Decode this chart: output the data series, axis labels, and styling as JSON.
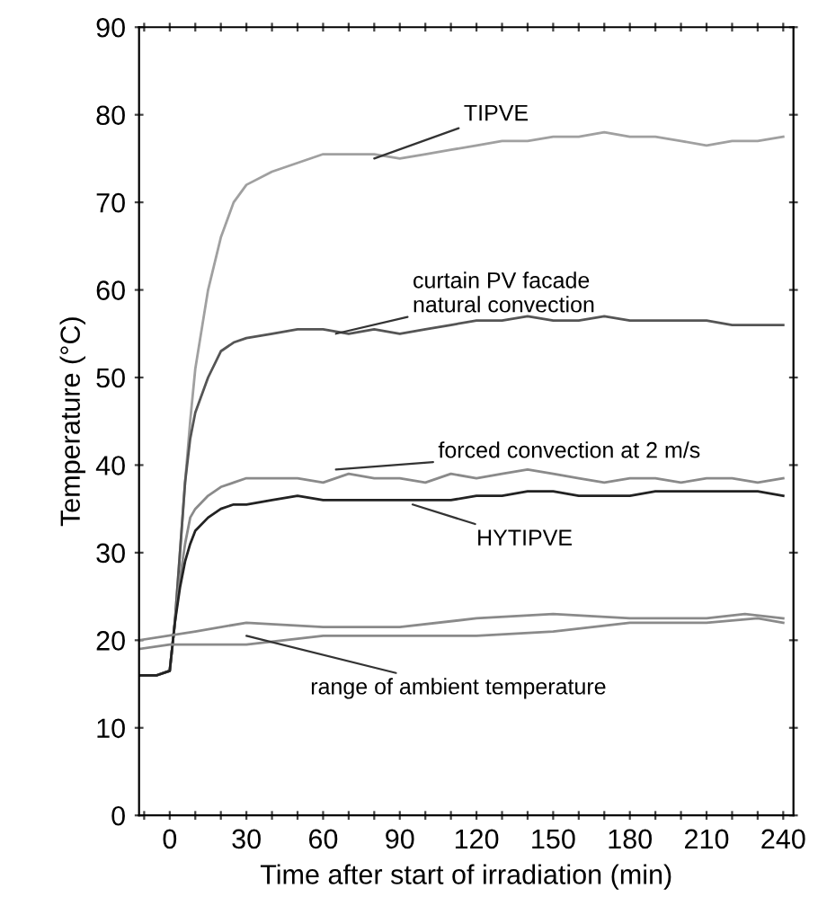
{
  "chart_data": {
    "type": "line",
    "xlabel": "Time after start of irradiation (min)",
    "ylabel": "Temperature (°C)",
    "xlim": [
      -12,
      244
    ],
    "ylim": [
      0,
      90
    ],
    "xticks": [
      {
        "value": -10,
        "label": null
      },
      0,
      {
        "value": 10,
        "label": null
      },
      {
        "value": 20,
        "label": null
      },
      30,
      {
        "value": 40,
        "label": null
      },
      {
        "value": 50,
        "label": null
      },
      60,
      {
        "value": 70,
        "label": null
      },
      {
        "value": 80,
        "label": null
      },
      90,
      {
        "value": 100,
        "label": null
      },
      {
        "value": 110,
        "label": null
      },
      120,
      {
        "value": 130,
        "label": null
      },
      {
        "value": 140,
        "label": null
      },
      150,
      {
        "value": 160,
        "label": null
      },
      {
        "value": 170,
        "label": null
      },
      180,
      {
        "value": 190,
        "label": null
      },
      {
        "value": 200,
        "label": null
      },
      210,
      {
        "value": 220,
        "label": null
      },
      {
        "value": 230,
        "label": null
      },
      240
    ],
    "yticks": [
      0,
      10,
      20,
      30,
      40,
      50,
      60,
      70,
      80,
      90
    ],
    "grid": false,
    "legend": false,
    "marker": "none",
    "line_style": "solid",
    "annotations": [
      {
        "text": "TIPVE",
        "x": 80,
        "y": 75
      },
      {
        "text": "curtain PV facade\nnatural convection",
        "x": 65,
        "y": 55
      },
      {
        "text": "forced convection at 2 m/s",
        "x": 65,
        "y": 39.5
      },
      {
        "text": "HYTIPVE",
        "x": 95,
        "y": 35.5
      },
      {
        "text": "range of ambient temperature",
        "x": 30,
        "y": 20.5
      }
    ],
    "series": [
      {
        "color": "#a0a0a0",
        "x": [
          -12,
          -5,
          0,
          2,
          4,
          6,
          8,
          10,
          15,
          20,
          25,
          30,
          40,
          50,
          60,
          70,
          80,
          90,
          100,
          110,
          120,
          130,
          140,
          150,
          160,
          170,
          180,
          190,
          200,
          210,
          220,
          230,
          240
        ],
        "values": [
          16,
          16,
          16.5,
          22,
          30,
          38,
          45,
          51,
          60,
          66,
          70,
          72,
          73.5,
          74.5,
          75.5,
          75.5,
          75.5,
          75,
          75.5,
          76,
          76.5,
          77,
          77,
          77.5,
          77.5,
          78,
          77.5,
          77.5,
          77,
          76.5,
          77,
          77,
          77.5
        ]
      },
      {
        "color": "#555555",
        "x": [
          -12,
          -5,
          0,
          2,
          4,
          6,
          8,
          10,
          15,
          20,
          25,
          30,
          40,
          50,
          60,
          70,
          80,
          90,
          100,
          110,
          120,
          130,
          140,
          150,
          160,
          170,
          180,
          190,
          200,
          210,
          220,
          230,
          240
        ],
        "values": [
          16,
          16,
          16.5,
          22,
          30,
          38,
          43,
          46,
          50,
          53,
          54,
          54.5,
          55,
          55.5,
          55.5,
          55,
          55.5,
          55,
          55.5,
          56,
          56.5,
          56.5,
          57,
          56.5,
          56.5,
          57,
          56.5,
          56.5,
          56.5,
          56.5,
          56,
          56,
          56
        ]
      },
      {
        "color": "#8a8a8a",
        "x": [
          -12,
          -5,
          0,
          2,
          4,
          6,
          8,
          10,
          15,
          20,
          25,
          30,
          40,
          50,
          60,
          70,
          80,
          90,
          100,
          110,
          120,
          130,
          140,
          150,
          160,
          170,
          180,
          190,
          200,
          210,
          220,
          230,
          240
        ],
        "values": [
          16,
          16,
          16.5,
          22,
          27,
          31,
          34,
          35,
          36.5,
          37.5,
          38,
          38.5,
          38.5,
          38.5,
          38,
          39,
          38.5,
          38.5,
          38,
          39,
          38.5,
          39,
          39.5,
          39,
          38.5,
          38,
          38.5,
          38.5,
          38,
          38.5,
          38.5,
          38,
          38.5
        ]
      },
      {
        "color": "#222222",
        "x": [
          -12,
          -5,
          0,
          2,
          4,
          6,
          8,
          10,
          15,
          20,
          25,
          30,
          40,
          50,
          60,
          70,
          80,
          90,
          100,
          110,
          120,
          130,
          140,
          150,
          160,
          170,
          180,
          190,
          200,
          210,
          220,
          230,
          240
        ],
        "values": [
          16,
          16,
          16.5,
          22,
          26,
          29,
          31,
          32.5,
          34,
          35,
          35.5,
          35.5,
          36,
          36.5,
          36,
          36,
          36,
          36,
          36,
          36,
          36.5,
          36.5,
          37,
          37,
          36.5,
          36.5,
          36.5,
          37,
          37,
          37,
          37,
          37,
          36.5
        ]
      },
      {
        "color": "#8a8a8a",
        "x": [
          -12,
          10,
          30,
          60,
          90,
          120,
          150,
          180,
          210,
          225,
          240
        ],
        "values": [
          20,
          21,
          22,
          21.5,
          21.5,
          22.5,
          23,
          22.5,
          22.5,
          23,
          22.5
        ]
      },
      {
        "color": "#8a8a8a",
        "x": [
          -12,
          0,
          30,
          60,
          90,
          120,
          150,
          180,
          210,
          230,
          240
        ],
        "values": [
          19,
          19.5,
          19.5,
          20.5,
          20.5,
          20.5,
          21,
          22,
          22,
          22.5,
          22
        ]
      }
    ]
  }
}
